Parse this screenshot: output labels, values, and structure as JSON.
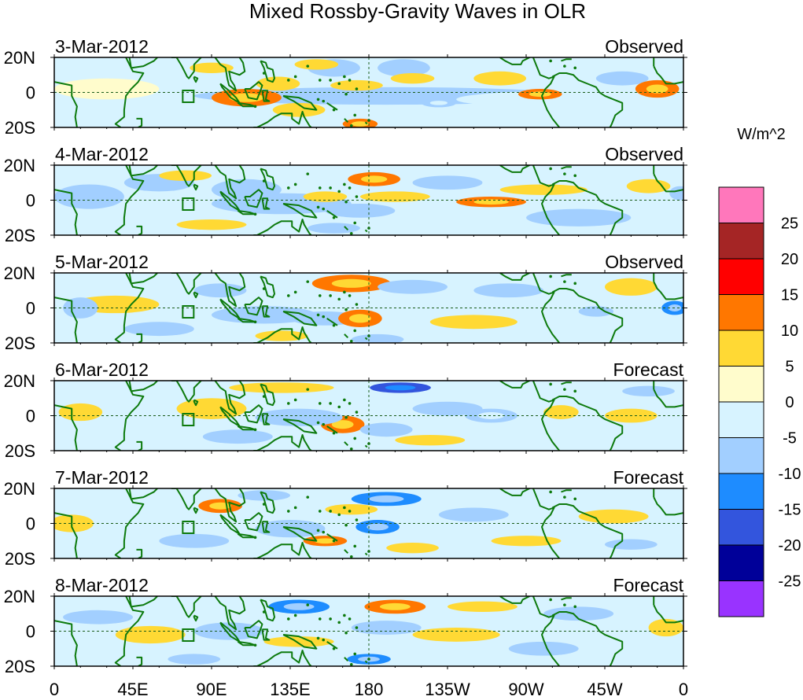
{
  "chart_data": {
    "type": "heatmap",
    "title": "Mixed Rossby-Gravity Waves in OLR",
    "colorbar_units": "W/m^2",
    "colorbar_labels": [
      "25",
      "20",
      "15",
      "10",
      "5",
      "0",
      "-5",
      "-10",
      "-15",
      "-20",
      "-25"
    ],
    "levels": [
      -25,
      -20,
      -15,
      -10,
      -5,
      0,
      5,
      10,
      15,
      20,
      25
    ],
    "palette": [
      "#9933FF",
      "#000099",
      "#3355DD",
      "#1E8CFF",
      "#A2CFFF",
      "#D7F3FF",
      "#FFFCCC",
      "#FFD934",
      "#FF7700",
      "#FF0000",
      "#A52525",
      "#FF77BB"
    ],
    "x_tick_labels": [
      "0",
      "45E",
      "90E",
      "135E",
      "180",
      "135W",
      "90W",
      "45W",
      "0"
    ],
    "x_range_lon": [
      0,
      360
    ],
    "y_tick_labels": [
      "20N",
      "0",
      "20S"
    ],
    "y_range_lat": [
      -20,
      20
    ],
    "legend_position": "right",
    "panels": [
      {
        "date": "3-Mar-2012",
        "label": "Observed",
        "features": [
          {
            "lon": 190,
            "lat": -2,
            "value": -7,
            "w": 220,
            "h": 10
          },
          {
            "lon": 300,
            "lat": -4,
            "value": -5,
            "w": 140,
            "h": 10
          },
          {
            "lon": 110,
            "lat": -3,
            "value": 12,
            "w": 40,
            "h": 10
          },
          {
            "lon": 128,
            "lat": 5,
            "value": 7,
            "w": 25,
            "h": 8
          },
          {
            "lon": 140,
            "lat": -10,
            "value": 7,
            "w": 30,
            "h": 8
          },
          {
            "lon": 160,
            "lat": 14,
            "value": -8,
            "w": 30,
            "h": 10
          },
          {
            "lon": 200,
            "lat": 14,
            "value": -7,
            "w": 30,
            "h": 10
          },
          {
            "lon": 173,
            "lat": 4,
            "value": 8,
            "w": 30,
            "h": 6
          },
          {
            "lon": 175,
            "lat": -18,
            "value": 12,
            "w": 20,
            "h": 6
          },
          {
            "lon": 205,
            "lat": 8,
            "value": 7,
            "w": 25,
            "h": 6
          },
          {
            "lon": 278,
            "lat": -1,
            "value": 10,
            "w": 25,
            "h": 6
          },
          {
            "lon": 255,
            "lat": 8,
            "value": 5,
            "w": 30,
            "h": 8
          },
          {
            "lon": 325,
            "lat": 8,
            "value": -7,
            "w": 30,
            "h": 8
          },
          {
            "lon": 345,
            "lat": 2,
            "value": 12,
            "w": 25,
            "h": 10
          },
          {
            "lon": 150,
            "lat": 16,
            "value": 7,
            "w": 25,
            "h": 6
          },
          {
            "lon": 220,
            "lat": -6,
            "value": -10,
            "w": 20,
            "h": 5
          },
          {
            "lon": 30,
            "lat": 2,
            "value": 4,
            "w": 60,
            "h": 12
          },
          {
            "lon": 10,
            "lat": -8,
            "value": -4,
            "w": 30,
            "h": 10
          },
          {
            "lon": 90,
            "lat": 14,
            "value": 6,
            "w": 25,
            "h": 6
          }
        ]
      },
      {
        "date": "4-Mar-2012",
        "label": "Observed",
        "features": [
          {
            "lon": 130,
            "lat": -2,
            "value": -7,
            "w": 80,
            "h": 12
          },
          {
            "lon": 183,
            "lat": 12,
            "value": 12,
            "w": 30,
            "h": 8
          },
          {
            "lon": 195,
            "lat": 2,
            "value": 9,
            "w": 40,
            "h": 6
          },
          {
            "lon": 250,
            "lat": -1,
            "value": 10,
            "w": 40,
            "h": 6
          },
          {
            "lon": 110,
            "lat": 6,
            "value": -8,
            "w": 40,
            "h": 12
          },
          {
            "lon": 90,
            "lat": -14,
            "value": 8,
            "w": 40,
            "h": 6
          },
          {
            "lon": 155,
            "lat": 2,
            "value": 9,
            "w": 25,
            "h": 6
          },
          {
            "lon": 20,
            "lat": 2,
            "value": -9,
            "w": 40,
            "h": 14
          },
          {
            "lon": 60,
            "lat": 10,
            "value": -6,
            "w": 40,
            "h": 10
          },
          {
            "lon": 300,
            "lat": -10,
            "value": -7,
            "w": 60,
            "h": 10
          },
          {
            "lon": 225,
            "lat": 10,
            "value": -6,
            "w": 40,
            "h": 8
          },
          {
            "lon": 340,
            "lat": 8,
            "value": 7,
            "w": 25,
            "h": 8
          },
          {
            "lon": 175,
            "lat": -6,
            "value": -6,
            "w": 40,
            "h": 8
          },
          {
            "lon": 160,
            "lat": -16,
            "value": -7,
            "w": 30,
            "h": 6
          },
          {
            "lon": 75,
            "lat": 14,
            "value": 6,
            "w": 30,
            "h": 6
          },
          {
            "lon": 280,
            "lat": 6,
            "value": 5,
            "w": 50,
            "h": 6
          },
          {
            "lon": 358,
            "lat": 4,
            "value": -8,
            "w": 12,
            "h": 8
          }
        ]
      },
      {
        "date": "5-Mar-2012",
        "label": "Observed",
        "features": [
          {
            "lon": 170,
            "lat": 14,
            "value": 13,
            "w": 45,
            "h": 10
          },
          {
            "lon": 155,
            "lat": -6,
            "value": -8,
            "w": 40,
            "h": 8
          },
          {
            "lon": 175,
            "lat": -6,
            "value": 12,
            "w": 25,
            "h": 10
          },
          {
            "lon": 120,
            "lat": -4,
            "value": -7,
            "w": 60,
            "h": 10
          },
          {
            "lon": 35,
            "lat": 2,
            "value": 5,
            "w": 50,
            "h": 10
          },
          {
            "lon": 15,
            "lat": 0,
            "value": -7,
            "w": 20,
            "h": 12
          },
          {
            "lon": 60,
            "lat": -12,
            "value": -7,
            "w": 40,
            "h": 8
          },
          {
            "lon": 95,
            "lat": 10,
            "value": -7,
            "w": 30,
            "h": 8
          },
          {
            "lon": 240,
            "lat": -8,
            "value": 9,
            "w": 50,
            "h": 8
          },
          {
            "lon": 330,
            "lat": 12,
            "value": 7,
            "w": 30,
            "h": 10
          },
          {
            "lon": 355,
            "lat": 0,
            "value": -12,
            "w": 15,
            "h": 8
          },
          {
            "lon": 205,
            "lat": 12,
            "value": -6,
            "w": 40,
            "h": 8
          },
          {
            "lon": 260,
            "lat": 10,
            "value": -6,
            "w": 40,
            "h": 8
          },
          {
            "lon": 310,
            "lat": -2,
            "value": -8,
            "w": 20,
            "h": 6
          },
          {
            "lon": 130,
            "lat": -16,
            "value": 8,
            "w": 30,
            "h": 6
          },
          {
            "lon": 185,
            "lat": -18,
            "value": -8,
            "w": 30,
            "h": 6
          }
        ]
      },
      {
        "date": "6-Mar-2012",
        "label": "Forecast",
        "features": [
          {
            "lon": 198,
            "lat": 16,
            "value": -16,
            "w": 35,
            "h": 6
          },
          {
            "lon": 165,
            "lat": -5,
            "value": 14,
            "w": 25,
            "h": 10
          },
          {
            "lon": 140,
            "lat": -1,
            "value": -7,
            "w": 50,
            "h": 10
          },
          {
            "lon": 15,
            "lat": 2,
            "value": 9,
            "w": 25,
            "h": 10
          },
          {
            "lon": 90,
            "lat": 4,
            "value": 6,
            "w": 40,
            "h": 12
          },
          {
            "lon": 105,
            "lat": -12,
            "value": -7,
            "w": 40,
            "h": 8
          },
          {
            "lon": 60,
            "lat": -4,
            "value": -5,
            "w": 40,
            "h": 10
          },
          {
            "lon": 250,
            "lat": 0,
            "value": -10,
            "w": 30,
            "h": 8
          },
          {
            "lon": 330,
            "lat": 0,
            "value": 6,
            "w": 30,
            "h": 8
          },
          {
            "lon": 290,
            "lat": 2,
            "value": 8,
            "w": 20,
            "h": 8
          },
          {
            "lon": 225,
            "lat": 4,
            "value": -8,
            "w": 40,
            "h": 8
          },
          {
            "lon": 190,
            "lat": -8,
            "value": -6,
            "w": 30,
            "h": 8
          },
          {
            "lon": 130,
            "lat": 16,
            "value": 5,
            "w": 60,
            "h": 6
          },
          {
            "lon": 340,
            "lat": 14,
            "value": -6,
            "w": 30,
            "h": 6
          },
          {
            "lon": 215,
            "lat": -14,
            "value": 6,
            "w": 40,
            "h": 6
          }
        ]
      },
      {
        "date": "7-Mar-2012",
        "label": "Forecast",
        "features": [
          {
            "lon": 190,
            "lat": 14,
            "value": -12,
            "w": 40,
            "h": 8
          },
          {
            "lon": 185,
            "lat": -2,
            "value": -12,
            "w": 25,
            "h": 8
          },
          {
            "lon": 95,
            "lat": 10,
            "value": 10,
            "w": 25,
            "h": 8
          },
          {
            "lon": 80,
            "lat": -10,
            "value": -8,
            "w": 40,
            "h": 8
          },
          {
            "lon": 155,
            "lat": -10,
            "value": 10,
            "w": 25,
            "h": 6
          },
          {
            "lon": 135,
            "lat": -3,
            "value": -7,
            "w": 40,
            "h": 10
          },
          {
            "lon": 10,
            "lat": 0,
            "value": 8,
            "w": 25,
            "h": 10
          },
          {
            "lon": 40,
            "lat": -10,
            "value": -5,
            "w": 40,
            "h": 8
          },
          {
            "lon": 240,
            "lat": 5,
            "value": -7,
            "w": 40,
            "h": 8
          },
          {
            "lon": 320,
            "lat": 4,
            "value": 5,
            "w": 40,
            "h": 8
          },
          {
            "lon": 330,
            "lat": -12,
            "value": -6,
            "w": 30,
            "h": 6
          },
          {
            "lon": 170,
            "lat": 8,
            "value": 6,
            "w": 30,
            "h": 6
          },
          {
            "lon": 205,
            "lat": -14,
            "value": 9,
            "w": 30,
            "h": 6
          },
          {
            "lon": 120,
            "lat": 16,
            "value": -6,
            "w": 30,
            "h": 6
          },
          {
            "lon": 270,
            "lat": -10,
            "value": 5,
            "w": 40,
            "h": 6
          }
        ]
      },
      {
        "date": "8-Mar-2012",
        "label": "Forecast",
        "features": [
          {
            "lon": 195,
            "lat": 14,
            "value": 14,
            "w": 35,
            "h": 8
          },
          {
            "lon": 140,
            "lat": 14,
            "value": -11,
            "w": 35,
            "h": 8
          },
          {
            "lon": 80,
            "lat": -16,
            "value": -8,
            "w": 30,
            "h": 6
          },
          {
            "lon": 180,
            "lat": -16,
            "value": -14,
            "w": 25,
            "h": 6
          },
          {
            "lon": 190,
            "lat": 2,
            "value": -7,
            "w": 40,
            "h": 8
          },
          {
            "lon": 100,
            "lat": 0,
            "value": -6,
            "w": 40,
            "h": 10
          },
          {
            "lon": 25,
            "lat": 8,
            "value": -6,
            "w": 40,
            "h": 8
          },
          {
            "lon": 55,
            "lat": -2,
            "value": 5,
            "w": 40,
            "h": 10
          },
          {
            "lon": 230,
            "lat": -2,
            "value": 6,
            "w": 50,
            "h": 8
          },
          {
            "lon": 280,
            "lat": -10,
            "value": -7,
            "w": 40,
            "h": 8
          },
          {
            "lon": 300,
            "lat": 10,
            "value": -6,
            "w": 40,
            "h": 8
          },
          {
            "lon": 350,
            "lat": 2,
            "value": 6,
            "w": 20,
            "h": 10
          },
          {
            "lon": 140,
            "lat": -6,
            "value": 6,
            "w": 40,
            "h": 6
          },
          {
            "lon": 245,
            "lat": 14,
            "value": 5,
            "w": 40,
            "h": 6
          }
        ]
      }
    ]
  }
}
